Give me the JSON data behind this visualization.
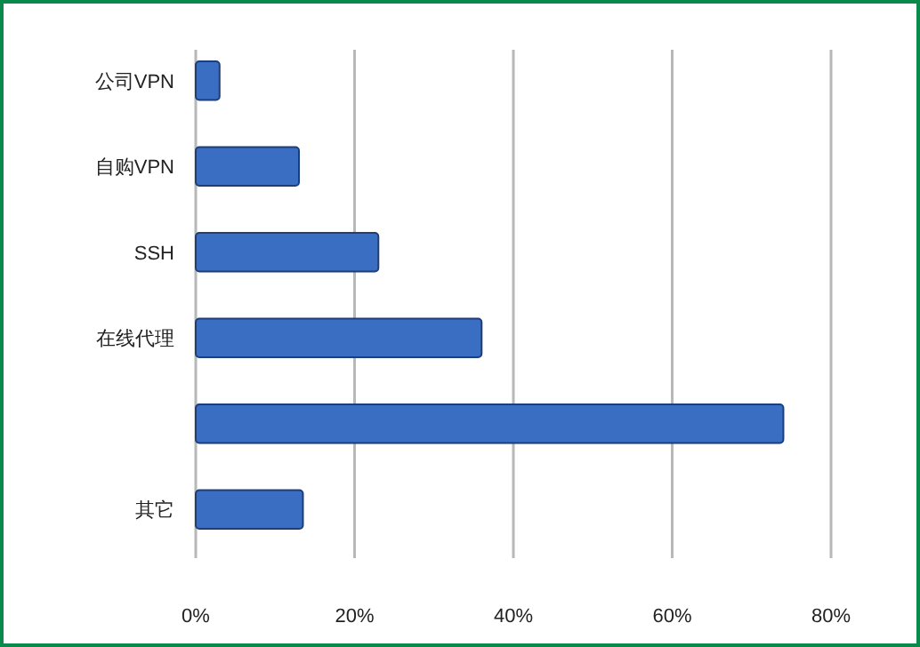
{
  "chart_data": {
    "type": "bar",
    "orientation": "horizontal",
    "categories": [
      "公司VPN",
      "自购VPN",
      "SSH",
      "在线代理",
      null,
      "其它"
    ],
    "values": [
      3,
      13,
      23,
      36,
      74,
      13.5
    ],
    "color": "#3a6ec2",
    "xlim": [
      0,
      80
    ],
    "xticks": [
      {
        "value": 0,
        "label": "0%"
      },
      {
        "value": 20,
        "label": "20%"
      },
      {
        "value": 40,
        "label": "40%"
      },
      {
        "value": 60,
        "label": "60%"
      },
      {
        "value": 80,
        "label": "80%"
      }
    ],
    "grid": "x"
  }
}
